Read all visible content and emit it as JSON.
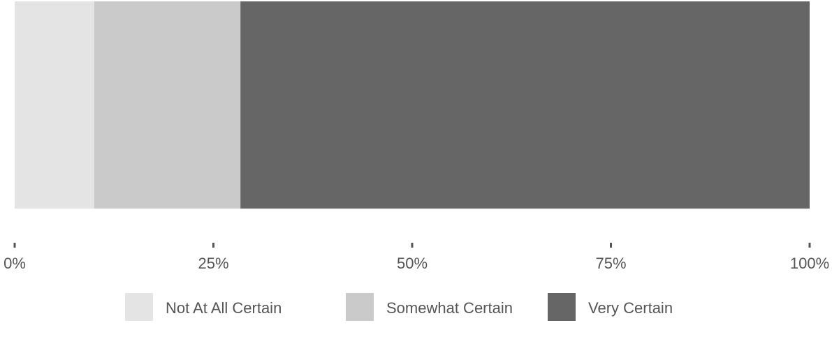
{
  "chart_data": {
    "type": "bar",
    "orientation": "horizontal",
    "stacked": true,
    "scale": "percent",
    "categories": [
      ""
    ],
    "series": [
      {
        "name": "Not At All Certain",
        "values": [
          10
        ],
        "color": "#e4e4e4"
      },
      {
        "name": "Somewhat Certain",
        "values": [
          18.4
        ],
        "color": "#cacaca"
      },
      {
        "name": "Very Certain",
        "values": [
          71.6
        ],
        "color": "#666666"
      }
    ],
    "xlim": [
      0,
      100
    ],
    "x_ticks": [
      "0%",
      "25%",
      "50%",
      "75%",
      "100%"
    ],
    "title": "",
    "xlabel": "",
    "ylabel": "",
    "grid": false,
    "legend_position": "bottom"
  }
}
